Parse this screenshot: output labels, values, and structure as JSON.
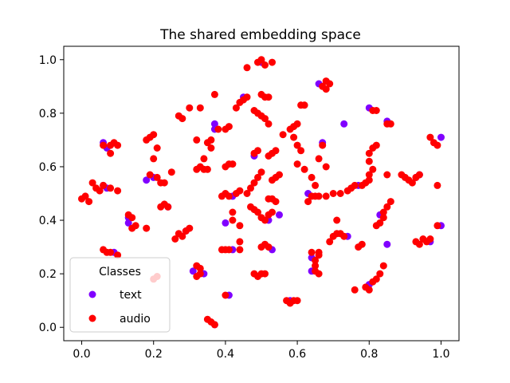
{
  "chart_data": {
    "type": "scatter",
    "title": "The shared embedding space",
    "xlabel": "",
    "ylabel": "",
    "xlim": [
      -0.05,
      1.05
    ],
    "ylim": [
      -0.05,
      1.05
    ],
    "xticks": [
      0.0,
      0.2,
      0.4,
      0.6,
      0.8,
      1.0
    ],
    "xtick_labels": [
      "0.0",
      "0.2",
      "0.4",
      "0.6",
      "0.8",
      "1.0"
    ],
    "yticks": [
      0.0,
      0.2,
      0.4,
      0.6,
      0.8,
      1.0
    ],
    "ytick_labels": [
      "0.0",
      "0.2",
      "0.4",
      "0.6",
      "0.8",
      "1.0"
    ],
    "grid": false,
    "legend": {
      "title": "Classes",
      "placement": "lower-left",
      "entries": [
        {
          "label": "text",
          "color": "#8000ff"
        },
        {
          "label": "audio",
          "color": "#ff0000"
        }
      ]
    },
    "series": [
      {
        "name": "text",
        "color": "#8000ff",
        "points": [
          [
            0.06,
            0.69
          ],
          [
            0.07,
            0.67
          ],
          [
            0.06,
            0.53
          ],
          [
            0.07,
            0.52
          ],
          [
            0.09,
            0.28
          ],
          [
            0.13,
            0.41
          ],
          [
            0.18,
            0.55
          ],
          [
            0.2,
            0.56
          ],
          [
            0.24,
            0.45
          ],
          [
            0.29,
            0.36
          ],
          [
            0.31,
            0.21
          ],
          [
            0.34,
            0.2
          ],
          [
            0.37,
            0.76
          ],
          [
            0.37,
            0.74
          ],
          [
            0.37,
            0.01
          ],
          [
            0.4,
            0.39
          ],
          [
            0.42,
            0.29
          ],
          [
            0.42,
            0.49
          ],
          [
            0.41,
            0.12
          ],
          [
            0.45,
            0.86
          ],
          [
            0.48,
            0.64
          ],
          [
            0.5,
            0.99
          ],
          [
            0.52,
            0.4
          ],
          [
            0.53,
            0.29
          ],
          [
            0.55,
            0.42
          ],
          [
            0.63,
            0.5
          ],
          [
            0.64,
            0.26
          ],
          [
            0.64,
            0.21
          ],
          [
            0.66,
            0.91
          ],
          [
            0.67,
            0.69
          ],
          [
            0.73,
            0.76
          ],
          [
            0.8,
            0.82
          ],
          [
            0.77,
            0.53
          ],
          [
            0.8,
            0.16
          ],
          [
            0.83,
            0.42
          ],
          [
            0.85,
            0.77
          ],
          [
            0.93,
            0.56
          ],
          [
            0.94,
            0.57
          ],
          [
            1.0,
            0.71
          ],
          [
            1.0,
            0.38
          ],
          [
            0.97,
            0.32
          ],
          [
            0.85,
            0.31
          ],
          [
            0.13,
            0.39
          ],
          [
            0.58,
            0.1
          ],
          [
            0.74,
            0.34
          ]
        ]
      },
      {
        "name": "audio",
        "color": "#ff0000",
        "points": [
          [
            0.0,
            0.48
          ],
          [
            0.01,
            0.49
          ],
          [
            0.02,
            0.47
          ],
          [
            0.03,
            0.54
          ],
          [
            0.04,
            0.52
          ],
          [
            0.05,
            0.51
          ],
          [
            0.06,
            0.53
          ],
          [
            0.08,
            0.52
          ],
          [
            0.1,
            0.51
          ],
          [
            0.06,
            0.29
          ],
          [
            0.07,
            0.28
          ],
          [
            0.08,
            0.28
          ],
          [
            0.1,
            0.27
          ],
          [
            0.08,
            0.65
          ],
          [
            0.08,
            0.68
          ],
          [
            0.09,
            0.69
          ],
          [
            0.1,
            0.68
          ],
          [
            0.06,
            0.68
          ],
          [
            0.13,
            0.42
          ],
          [
            0.14,
            0.41
          ],
          [
            0.14,
            0.37
          ],
          [
            0.15,
            0.38
          ],
          [
            0.18,
            0.37
          ],
          [
            0.18,
            0.7
          ],
          [
            0.19,
            0.71
          ],
          [
            0.2,
            0.72
          ],
          [
            0.21,
            0.67
          ],
          [
            0.2,
            0.63
          ],
          [
            0.19,
            0.57
          ],
          [
            0.21,
            0.56
          ],
          [
            0.22,
            0.54
          ],
          [
            0.23,
            0.54
          ],
          [
            0.25,
            0.58
          ],
          [
            0.22,
            0.45
          ],
          [
            0.23,
            0.46
          ],
          [
            0.24,
            0.45
          ],
          [
            0.2,
            0.18
          ],
          [
            0.21,
            0.19
          ],
          [
            0.26,
            0.33
          ],
          [
            0.27,
            0.35
          ],
          [
            0.28,
            0.34
          ],
          [
            0.29,
            0.36
          ],
          [
            0.3,
            0.37
          ],
          [
            0.27,
            0.79
          ],
          [
            0.28,
            0.78
          ],
          [
            0.3,
            0.82
          ],
          [
            0.33,
            0.82
          ],
          [
            0.32,
            0.7
          ],
          [
            0.32,
            0.59
          ],
          [
            0.33,
            0.6
          ],
          [
            0.34,
            0.59
          ],
          [
            0.35,
            0.59
          ],
          [
            0.34,
            0.63
          ],
          [
            0.35,
            0.69
          ],
          [
            0.36,
            0.7
          ],
          [
            0.36,
            0.67
          ],
          [
            0.37,
            0.87
          ],
          [
            0.38,
            0.74
          ],
          [
            0.4,
            0.74
          ],
          [
            0.41,
            0.75
          ],
          [
            0.32,
            0.23
          ],
          [
            0.33,
            0.22
          ],
          [
            0.32,
            0.19
          ],
          [
            0.33,
            0.2
          ],
          [
            0.35,
            0.03
          ],
          [
            0.36,
            0.02
          ],
          [
            0.37,
            0.01
          ],
          [
            0.39,
            0.29
          ],
          [
            0.4,
            0.29
          ],
          [
            0.41,
            0.29
          ],
          [
            0.39,
            0.49
          ],
          [
            0.4,
            0.5
          ],
          [
            0.41,
            0.49
          ],
          [
            0.43,
            0.5
          ],
          [
            0.44,
            0.51
          ],
          [
            0.42,
            0.4
          ],
          [
            0.44,
            0.38
          ],
          [
            0.42,
            0.43
          ],
          [
            0.4,
            0.6
          ],
          [
            0.41,
            0.61
          ],
          [
            0.42,
            0.61
          ],
          [
            0.43,
            0.82
          ],
          [
            0.44,
            0.84
          ],
          [
            0.45,
            0.85
          ],
          [
            0.46,
            0.86
          ],
          [
            0.44,
            0.32
          ],
          [
            0.44,
            0.29
          ],
          [
            0.4,
            0.12
          ],
          [
            0.46,
            0.97
          ],
          [
            0.49,
            0.99
          ],
          [
            0.5,
            1.0
          ],
          [
            0.51,
            0.98
          ],
          [
            0.53,
            0.99
          ],
          [
            0.48,
            0.81
          ],
          [
            0.49,
            0.8
          ],
          [
            0.5,
            0.79
          ],
          [
            0.51,
            0.78
          ],
          [
            0.52,
            0.76
          ],
          [
            0.5,
            0.87
          ],
          [
            0.51,
            0.86
          ],
          [
            0.52,
            0.86
          ],
          [
            0.48,
            0.65
          ],
          [
            0.49,
            0.66
          ],
          [
            0.46,
            0.5
          ],
          [
            0.47,
            0.52
          ],
          [
            0.48,
            0.54
          ],
          [
            0.49,
            0.56
          ],
          [
            0.5,
            0.58
          ],
          [
            0.47,
            0.45
          ],
          [
            0.48,
            0.44
          ],
          [
            0.49,
            0.43
          ],
          [
            0.5,
            0.41
          ],
          [
            0.48,
            0.2
          ],
          [
            0.49,
            0.19
          ],
          [
            0.5,
            0.2
          ],
          [
            0.51,
            0.2
          ],
          [
            0.5,
            0.3
          ],
          [
            0.51,
            0.31
          ],
          [
            0.52,
            0.3
          ],
          [
            0.51,
            0.4
          ],
          [
            0.52,
            0.42
          ],
          [
            0.53,
            0.43
          ],
          [
            0.52,
            0.48
          ],
          [
            0.53,
            0.48
          ],
          [
            0.54,
            0.47
          ],
          [
            0.53,
            0.55
          ],
          [
            0.54,
            0.56
          ],
          [
            0.55,
            0.57
          ],
          [
            0.52,
            0.64
          ],
          [
            0.53,
            0.65
          ],
          [
            0.54,
            0.66
          ],
          [
            0.56,
            0.72
          ],
          [
            0.58,
            0.74
          ],
          [
            0.59,
            0.75
          ],
          [
            0.6,
            0.76
          ],
          [
            0.59,
            0.71
          ],
          [
            0.6,
            0.68
          ],
          [
            0.61,
            0.66
          ],
          [
            0.61,
            0.83
          ],
          [
            0.62,
            0.83
          ],
          [
            0.6,
            0.61
          ],
          [
            0.62,
            0.59
          ],
          [
            0.64,
            0.56
          ],
          [
            0.65,
            0.53
          ],
          [
            0.64,
            0.49
          ],
          [
            0.63,
            0.47
          ],
          [
            0.65,
            0.49
          ],
          [
            0.66,
            0.49
          ],
          [
            0.68,
            0.49
          ],
          [
            0.7,
            0.5
          ],
          [
            0.72,
            0.5
          ],
          [
            0.74,
            0.51
          ],
          [
            0.75,
            0.52
          ],
          [
            0.76,
            0.53
          ],
          [
            0.67,
            0.9
          ],
          [
            0.68,
            0.92
          ],
          [
            0.69,
            0.91
          ],
          [
            0.68,
            0.89
          ],
          [
            0.67,
            0.68
          ],
          [
            0.66,
            0.63
          ],
          [
            0.68,
            0.6
          ],
          [
            0.64,
            0.28
          ],
          [
            0.65,
            0.25
          ],
          [
            0.65,
            0.23
          ],
          [
            0.65,
            0.21
          ],
          [
            0.66,
            0.2
          ],
          [
            0.66,
            0.27
          ],
          [
            0.66,
            0.28
          ],
          [
            0.69,
            0.32
          ],
          [
            0.7,
            0.34
          ],
          [
            0.71,
            0.35
          ],
          [
            0.72,
            0.35
          ],
          [
            0.73,
            0.34
          ],
          [
            0.71,
            0.4
          ],
          [
            0.76,
            0.14
          ],
          [
            0.77,
            0.3
          ],
          [
            0.78,
            0.31
          ],
          [
            0.78,
            0.53
          ],
          [
            0.79,
            0.54
          ],
          [
            0.8,
            0.55
          ],
          [
            0.8,
            0.57
          ],
          [
            0.81,
            0.59
          ],
          [
            0.8,
            0.62
          ],
          [
            0.8,
            0.65
          ],
          [
            0.81,
            0.67
          ],
          [
            0.82,
            0.68
          ],
          [
            0.81,
            0.81
          ],
          [
            0.82,
            0.81
          ],
          [
            0.79,
            0.15
          ],
          [
            0.8,
            0.14
          ],
          [
            0.81,
            0.17
          ],
          [
            0.82,
            0.18
          ],
          [
            0.83,
            0.2
          ],
          [
            0.84,
            0.23
          ],
          [
            0.85,
            0.76
          ],
          [
            0.86,
            0.76
          ],
          [
            0.82,
            0.38
          ],
          [
            0.83,
            0.39
          ],
          [
            0.84,
            0.41
          ],
          [
            0.84,
            0.43
          ],
          [
            0.85,
            0.45
          ],
          [
            0.86,
            0.47
          ],
          [
            0.85,
            0.57
          ],
          [
            0.89,
            0.57
          ],
          [
            0.9,
            0.56
          ],
          [
            0.91,
            0.55
          ],
          [
            0.92,
            0.54
          ],
          [
            0.93,
            0.56
          ],
          [
            0.94,
            0.57
          ],
          [
            0.95,
            0.33
          ],
          [
            0.96,
            0.32
          ],
          [
            0.97,
            0.33
          ],
          [
            0.97,
            0.71
          ],
          [
            0.98,
            0.69
          ],
          [
            0.99,
            0.68
          ],
          [
            0.99,
            0.53
          ],
          [
            0.99,
            0.38
          ],
          [
            0.94,
            0.31
          ],
          [
            0.93,
            0.32
          ],
          [
            0.57,
            0.1
          ],
          [
            0.58,
            0.09
          ],
          [
            0.59,
            0.1
          ],
          [
            0.6,
            0.1
          ]
        ]
      }
    ]
  }
}
